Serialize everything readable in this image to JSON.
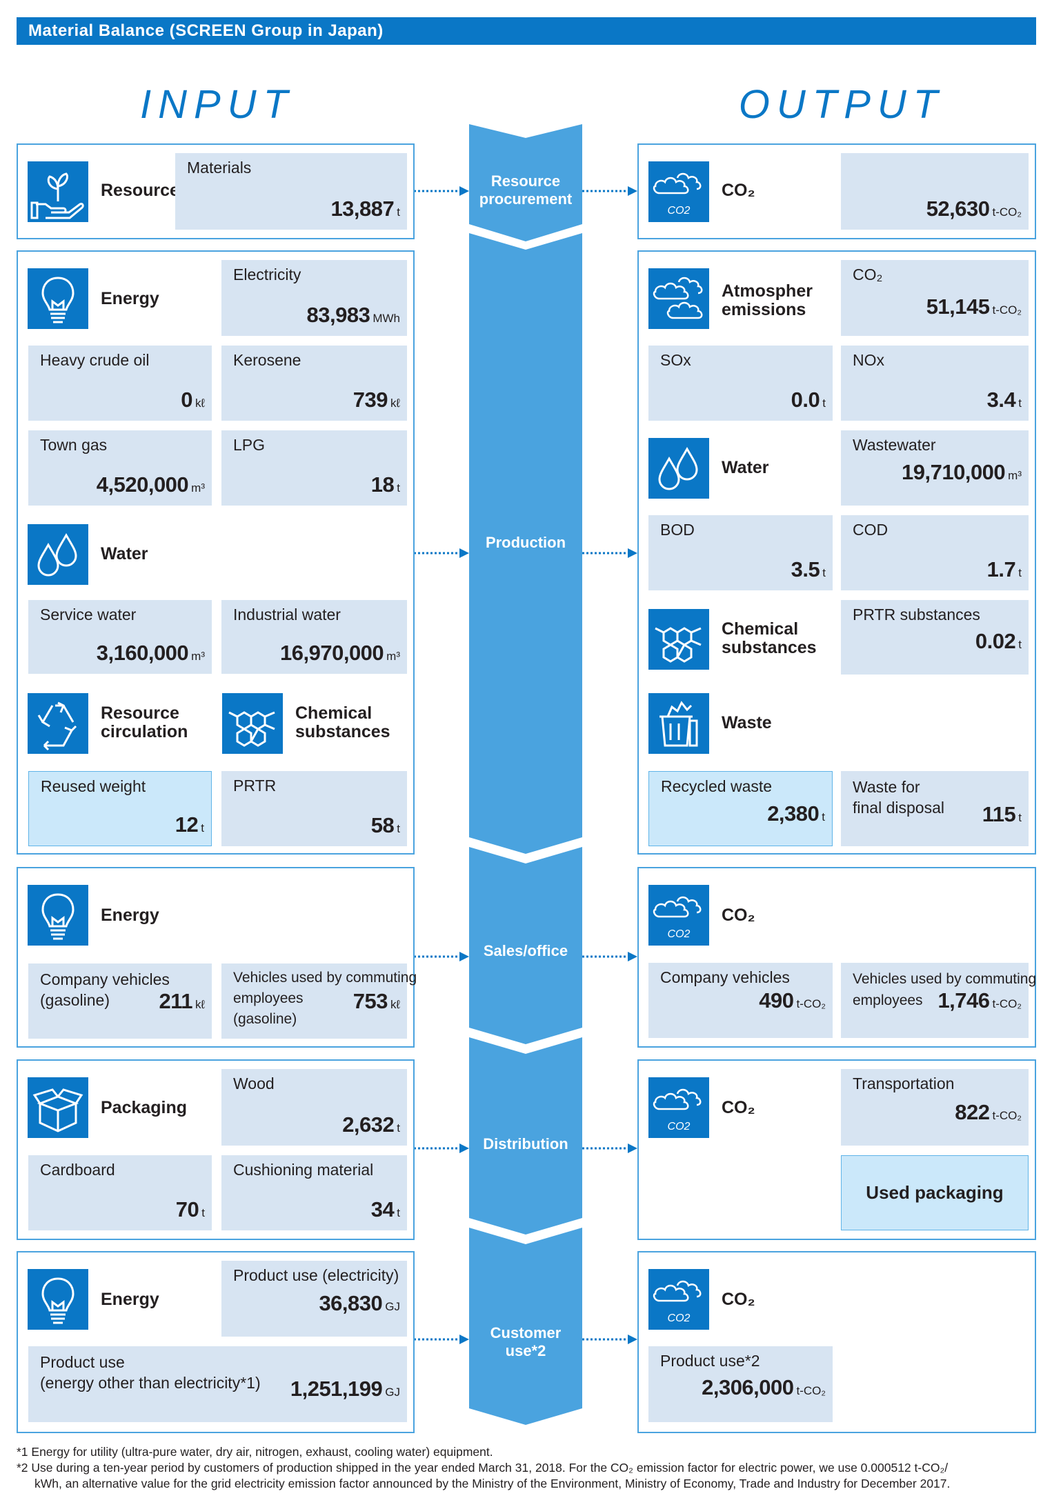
{
  "header": {
    "title": "Material Balance (SCREEN Group in Japan)"
  },
  "headings": {
    "input": "INPUT",
    "output": "OUTPUT"
  },
  "stages": {
    "resource": [
      "Resource",
      "procurement"
    ],
    "production": "Production",
    "sales": "Sales/office",
    "distribution": "Distribution",
    "customer": [
      "Customer",
      "use*2"
    ]
  },
  "input": {
    "resources": {
      "label": "Resources",
      "materials": {
        "label": "Materials",
        "value": "13,887",
        "unit": "t"
      }
    },
    "energy": {
      "label": "Energy",
      "electricity": {
        "label": "Electricity",
        "value": "83,983",
        "unit": "MWh"
      },
      "heavy_oil": {
        "label": "Heavy crude oil",
        "value": "0",
        "unit": "kℓ"
      },
      "kerosene": {
        "label": "Kerosene",
        "value": "739",
        "unit": "kℓ"
      },
      "town_gas": {
        "label": "Town gas",
        "value": "4,520,000",
        "unit": "m³"
      },
      "lpg": {
        "label": "LPG",
        "value": "18",
        "unit": "t"
      }
    },
    "water": {
      "label": "Water",
      "service": {
        "label": "Service water",
        "value": "3,160,000",
        "unit": "m³"
      },
      "industrial": {
        "label": "Industrial water",
        "value": "16,970,000",
        "unit": "m³"
      }
    },
    "resource_circ": {
      "line1": "Resource",
      "line2": "circulation",
      "reused": {
        "label": "Reused weight",
        "value": "12",
        "unit": "t"
      }
    },
    "chemical": {
      "line1": "Chemical",
      "line2": "substances",
      "prtr": {
        "label": "PRTR",
        "value": "58",
        "unit": "t"
      }
    },
    "sales_energy": {
      "label": "Energy",
      "company": {
        "line1": "Company vehicles",
        "line2": "(gasoline)",
        "value": "211",
        "unit": "kℓ"
      },
      "commuting": {
        "line1": "Vehicles used by commuting",
        "line2": "employees",
        "line3": "(gasoline)",
        "value": "753",
        "unit": "kℓ"
      }
    },
    "packaging": {
      "label": "Packaging",
      "wood": {
        "label": "Wood",
        "value": "2,632",
        "unit": "t"
      },
      "cardboard": {
        "label": "Cardboard",
        "value": "70",
        "unit": "t"
      },
      "cushioning": {
        "label": "Cushioning material",
        "value": "34",
        "unit": "t"
      }
    },
    "customer_energy": {
      "label": "Energy",
      "product_elec": {
        "label": "Product use (electricity)",
        "value": "36,830",
        "unit": "GJ"
      },
      "product_other": {
        "line1": "Product use",
        "line2": "(energy other than electricity*1)",
        "value": "1,251,199",
        "unit": "GJ"
      }
    }
  },
  "output": {
    "co2_resource": {
      "label": "CO₂",
      "value": "52,630",
      "unit": "t-CO₂"
    },
    "atmosphere": {
      "line1": "Atmospher",
      "line2": "emissions",
      "co2": {
        "label": "CO₂",
        "value": "51,145",
        "unit": "t-CO₂"
      },
      "sox": {
        "label": "SOx",
        "value": "0.0",
        "unit": "t"
      },
      "nox": {
        "label": "NOx",
        "value": "3.4",
        "unit": "t"
      }
    },
    "water": {
      "label": "Water",
      "wastewater": {
        "label": "Wastewater",
        "value": "19,710,000",
        "unit": "m³"
      },
      "bod": {
        "label": "BOD",
        "value": "3.5",
        "unit": "t"
      },
      "cod": {
        "label": "COD",
        "value": "1.7",
        "unit": "t"
      }
    },
    "chemical": {
      "line1": "Chemical",
      "line2": "substances",
      "prtr": {
        "label": "PRTR substances",
        "value": "0.02",
        "unit": "t"
      }
    },
    "waste": {
      "label": "Waste",
      "recycled": {
        "label": "Recycled waste",
        "value": "2,380",
        "unit": "t"
      },
      "final": {
        "line1": "Waste for",
        "line2": "final disposal",
        "value": "115",
        "unit": "t"
      }
    },
    "sales_co2": {
      "label": "CO₂",
      "company": {
        "label": "Company vehicles",
        "value": "490",
        "unit": "t-CO₂"
      },
      "commuting": {
        "line1": "Vehicles used by commuting",
        "line2": "employees",
        "value": "1,746",
        "unit": "t-CO₂"
      }
    },
    "dist_co2": {
      "label": "CO₂",
      "transport": {
        "label": "Transportation",
        "value": "822",
        "unit": "t-CO₂"
      },
      "used_packaging": "Used packaging"
    },
    "customer_co2": {
      "label": "CO₂",
      "product": {
        "label": "Product use*2",
        "value": "2,306,000",
        "unit": "t-CO₂"
      }
    },
    "co2_icon_text": "CO2"
  },
  "footnotes": [
    "*1 Energy for utility (ultra-pure water, dry air, nitrogen, exhaust, cooling water) equipment.",
    "*2 Use during a ten-year period by customers of production shipped in the year ended March 31, 2018. For the CO₂ emission factor for electric power, we use 0.000512 t-CO₂/",
    "kWh, an alternative value for the grid electricity emission factor announced by the Ministry of the Environment, Ministry of Economy, Trade and Industry for December 2017."
  ],
  "colors": {
    "brand_blue": "#0a77c6",
    "stage_blue": "#4aa3df",
    "box_fill": "#d7e4f2",
    "highlight_fill": "#cbe8fa"
  }
}
